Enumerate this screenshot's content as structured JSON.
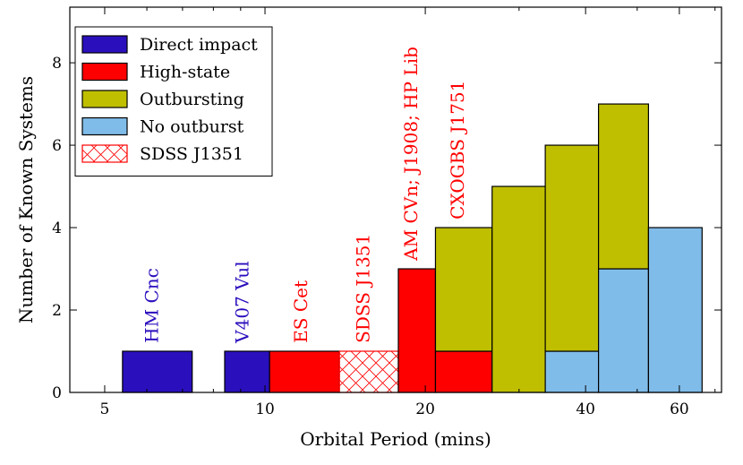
{
  "colors": {
    "direct_impact": "#2a0fbd",
    "high_state": "#ff0000",
    "outbursting": "#bfbf00",
    "no_outburst": "#80bce9",
    "hatch": "#ff0000",
    "label_blue": "#2a0fbd",
    "label_red": "#ff0000"
  },
  "chart_data": {
    "type": "bar",
    "stacked": true,
    "xscale": "log",
    "xlabel": "Orbital Period (mins)",
    "ylabel": "Number of Known Systems",
    "xlim": [
      4.3,
      72
    ],
    "ylim": [
      0,
      9.35
    ],
    "xticks": [
      5,
      10,
      20,
      40,
      60
    ],
    "yticks": [
      0,
      2,
      4,
      6,
      8
    ],
    "legend": {
      "placement": "top-left",
      "entries": [
        {
          "label": "Direct impact",
          "style": "direct_impact"
        },
        {
          "label": "High-state",
          "style": "high_state"
        },
        {
          "label": "Outbursting",
          "style": "outbursting"
        },
        {
          "label": "No outburst",
          "style": "no_outburst"
        },
        {
          "label": "SDSS J1351",
          "style": "hatch"
        }
      ]
    },
    "bins": [
      {
        "x0": 5.4,
        "x1": 7.3,
        "segments": [
          {
            "style": "direct_impact",
            "value": 1
          }
        ]
      },
      {
        "x0": 8.4,
        "x1": 10.2,
        "segments": [
          {
            "style": "direct_impact",
            "value": 1
          }
        ]
      },
      {
        "x0": 10.2,
        "x1": 13.8,
        "segments": [
          {
            "style": "high_state",
            "value": 1
          }
        ]
      },
      {
        "x0": 13.8,
        "x1": 17.8,
        "segments": [
          {
            "style": "hatch",
            "value": 1
          }
        ]
      },
      {
        "x0": 17.8,
        "x1": 20.9,
        "segments": [
          {
            "style": "high_state",
            "value": 3
          }
        ]
      },
      {
        "x0": 20.9,
        "x1": 26.7,
        "segments": [
          {
            "style": "high_state",
            "value": 1
          },
          {
            "style": "outbursting",
            "value": 3
          }
        ]
      },
      {
        "x0": 26.7,
        "x1": 33.6,
        "segments": [
          {
            "style": "outbursting",
            "value": 5
          }
        ]
      },
      {
        "x0": 33.6,
        "x1": 42.3,
        "segments": [
          {
            "style": "no_outburst",
            "value": 1
          },
          {
            "style": "outbursting",
            "value": 5
          }
        ]
      },
      {
        "x0": 42.3,
        "x1": 52.5,
        "segments": [
          {
            "style": "no_outburst",
            "value": 3
          },
          {
            "style": "outbursting",
            "value": 4
          }
        ]
      },
      {
        "x0": 52.5,
        "x1": 66.2,
        "segments": [
          {
            "style": "no_outburst",
            "value": 4
          }
        ]
      }
    ],
    "annotations": [
      {
        "text": "HM Cnc",
        "x": 6.3,
        "y": 1.2,
        "color": "label_blue"
      },
      {
        "text": "V407 Vul",
        "x": 9.3,
        "y": 1.2,
        "color": "label_blue"
      },
      {
        "text": "ES Cet",
        "x": 12.0,
        "y": 1.2,
        "color": "label_red"
      },
      {
        "text": "SDSS J1351",
        "x": 15.7,
        "y": 1.2,
        "color": "label_red"
      },
      {
        "text": "AM CVn; J1908; HP Lib",
        "x": 19.3,
        "y": 3.2,
        "color": "label_red"
      },
      {
        "text": "CXOGBS J1751",
        "x": 23.6,
        "y": 4.2,
        "color": "label_red"
      }
    ]
  }
}
